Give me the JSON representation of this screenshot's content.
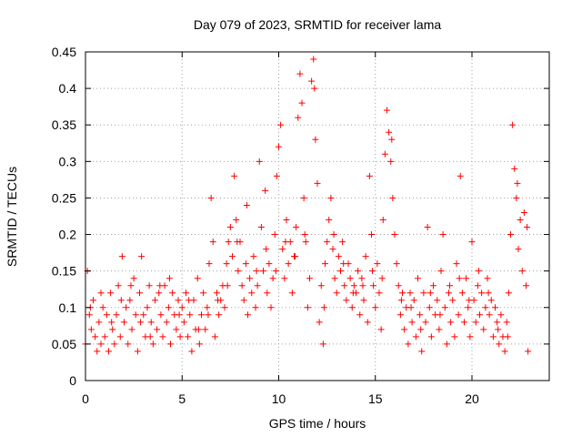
{
  "chart_data": {
    "type": "scatter",
    "title": "Day 079 of 2023, SRMTID for receiver lama",
    "xlabel": "GPS time / hours",
    "ylabel": "SRMTID / TECUs",
    "xlim": [
      0,
      24
    ],
    "ylim": [
      0,
      0.45
    ],
    "grid": true,
    "marker": "+",
    "marker_color": "#ff0000",
    "xticks": [
      0,
      5,
      10,
      15,
      20
    ],
    "xtick_labels": [
      "0",
      "5",
      "10",
      "15",
      "20"
    ],
    "yticks": [
      0,
      0.05,
      0.1,
      0.15,
      0.2,
      0.25,
      0.3,
      0.35,
      0.4,
      0.45
    ],
    "ytick_labels": [
      "0",
      "0.05",
      "0.1",
      "0.15",
      "0.2",
      "0.25",
      "0.3",
      "0.35",
      "0.4",
      "0.45"
    ],
    "series": [
      {
        "name": "SRMTID",
        "points": [
          [
            0.0,
            0.05
          ],
          [
            0.1,
            0.15
          ],
          [
            0.2,
            0.09
          ],
          [
            0.3,
            0.07
          ],
          [
            0.4,
            0.11
          ],
          [
            0.5,
            0.06
          ],
          [
            0.6,
            0.04
          ],
          [
            0.7,
            0.08
          ],
          [
            0.8,
            0.05
          ],
          [
            0.9,
            0.1
          ],
          [
            1.0,
            0.06
          ],
          [
            1.1,
            0.09
          ],
          [
            1.2,
            0.04
          ],
          [
            1.3,
            0.12
          ],
          [
            1.4,
            0.07
          ],
          [
            1.5,
            0.05
          ],
          [
            1.6,
            0.09
          ],
          [
            1.7,
            0.13
          ],
          [
            1.8,
            0.06
          ],
          [
            1.9,
            0.17
          ],
          [
            2.0,
            0.08
          ],
          [
            2.1,
            0.1
          ],
          [
            2.2,
            0.05
          ],
          [
            2.3,
            0.11
          ],
          [
            2.4,
            0.07
          ],
          [
            2.5,
            0.14
          ],
          [
            2.6,
            0.09
          ],
          [
            2.7,
            0.04
          ],
          [
            2.8,
            0.12
          ],
          [
            2.9,
            0.17
          ],
          [
            3.0,
            0.09
          ],
          [
            3.1,
            0.06
          ],
          [
            3.2,
            0.1
          ],
          [
            3.3,
            0.13
          ],
          [
            3.4,
            0.08
          ],
          [
            3.5,
            0.05
          ],
          [
            3.6,
            0.11
          ],
          [
            3.7,
            0.07
          ],
          [
            3.8,
            0.12
          ],
          [
            3.9,
            0.09
          ],
          [
            4.0,
            0.06
          ],
          [
            4.1,
            0.13
          ],
          [
            4.2,
            0.08
          ],
          [
            4.3,
            0.1
          ],
          [
            4.4,
            0.05
          ],
          [
            4.5,
            0.12
          ],
          [
            4.6,
            0.09
          ],
          [
            4.7,
            0.07
          ],
          [
            4.8,
            0.11
          ],
          [
            4.9,
            0.06
          ],
          [
            5.0,
            0.1
          ],
          [
            5.1,
            0.08
          ],
          [
            5.2,
            0.12
          ],
          [
            5.3,
            0.06
          ],
          [
            5.4,
            0.09
          ],
          [
            5.5,
            0.04
          ],
          [
            5.6,
            0.11
          ],
          [
            5.7,
            0.07
          ],
          [
            5.8,
            0.14
          ],
          [
            5.9,
            0.05
          ],
          [
            6.0,
            0.09
          ],
          [
            6.1,
            0.12
          ],
          [
            6.2,
            0.07
          ],
          [
            6.3,
            0.1
          ],
          [
            6.4,
            0.16
          ],
          [
            6.5,
            0.25
          ],
          [
            6.6,
            0.19
          ],
          [
            6.7,
            0.06
          ],
          [
            6.8,
            0.12
          ],
          [
            6.9,
            0.09
          ],
          [
            7.0,
            0.11
          ],
          [
            7.1,
            0.13
          ],
          [
            7.2,
            0.1
          ],
          [
            7.3,
            0.16
          ],
          [
            7.4,
            0.19
          ],
          [
            7.5,
            0.21
          ],
          [
            7.6,
            0.17
          ],
          [
            7.7,
            0.28
          ],
          [
            7.8,
            0.22
          ],
          [
            7.9,
            0.15
          ],
          [
            8.0,
            0.19
          ],
          [
            8.1,
            0.13
          ],
          [
            8.2,
            0.11
          ],
          [
            8.3,
            0.16
          ],
          [
            8.4,
            0.09
          ],
          [
            8.5,
            0.14
          ],
          [
            8.6,
            0.12
          ],
          [
            8.7,
            0.17
          ],
          [
            8.8,
            0.1
          ],
          [
            8.9,
            0.13
          ],
          [
            9.0,
            0.3
          ],
          [
            9.1,
            0.21
          ],
          [
            9.2,
            0.15
          ],
          [
            9.3,
            0.26
          ],
          [
            9.4,
            0.12
          ],
          [
            9.5,
            0.16
          ],
          [
            9.6,
            0.1
          ],
          [
            9.7,
            0.14
          ],
          [
            9.8,
            0.2
          ],
          [
            9.9,
            0.28
          ],
          [
            10.0,
            0.32
          ],
          [
            10.1,
            0.35
          ],
          [
            10.2,
            0.18
          ],
          [
            10.3,
            0.14
          ],
          [
            10.4,
            0.22
          ],
          [
            10.5,
            0.16
          ],
          [
            10.6,
            0.19
          ],
          [
            10.7,
            0.12
          ],
          [
            10.8,
            0.17
          ],
          [
            10.9,
            0.21
          ],
          [
            11.0,
            0.36
          ],
          [
            11.1,
            0.42
          ],
          [
            11.2,
            0.38
          ],
          [
            11.3,
            0.25
          ],
          [
            11.4,
            0.19
          ],
          [
            11.5,
            0.1
          ],
          [
            11.6,
            0.14
          ],
          [
            11.7,
            0.41
          ],
          [
            11.8,
            0.44
          ],
          [
            11.9,
            0.33
          ],
          [
            12.0,
            0.27
          ],
          [
            12.1,
            0.08
          ],
          [
            12.2,
            0.13
          ],
          [
            12.3,
            0.05
          ],
          [
            12.4,
            0.16
          ],
          [
            12.5,
            0.19
          ],
          [
            12.6,
            0.22
          ],
          [
            12.7,
            0.25
          ],
          [
            12.8,
            0.18
          ],
          [
            12.9,
            0.14
          ],
          [
            13.0,
            0.12
          ],
          [
            13.1,
            0.17
          ],
          [
            13.2,
            0.15
          ],
          [
            13.3,
            0.19
          ],
          [
            13.4,
            0.13
          ],
          [
            13.5,
            0.11
          ],
          [
            13.6,
            0.16
          ],
          [
            13.7,
            0.14
          ],
          [
            13.8,
            0.1
          ],
          [
            13.9,
            0.13
          ],
          [
            14.0,
            0.12
          ],
          [
            14.1,
            0.15
          ],
          [
            14.2,
            0.09
          ],
          [
            14.3,
            0.14
          ],
          [
            14.4,
            0.11
          ],
          [
            14.5,
            0.17
          ],
          [
            14.6,
            0.08
          ],
          [
            14.7,
            0.28
          ],
          [
            14.8,
            0.2
          ],
          [
            14.9,
            0.13
          ],
          [
            15.0,
            0.1
          ],
          [
            15.1,
            0.16
          ],
          [
            15.2,
            0.12
          ],
          [
            15.3,
            0.07
          ],
          [
            15.4,
            0.22
          ],
          [
            15.5,
            0.31
          ],
          [
            15.6,
            0.37
          ],
          [
            15.7,
            0.34
          ],
          [
            15.8,
            0.3
          ],
          [
            15.9,
            0.25
          ],
          [
            16.0,
            0.2
          ],
          [
            16.1,
            0.16
          ],
          [
            16.2,
            0.13
          ],
          [
            16.3,
            0.09
          ],
          [
            16.4,
            0.12
          ],
          [
            16.5,
            0.07
          ],
          [
            16.6,
            0.1
          ],
          [
            16.7,
            0.05
          ],
          [
            16.8,
            0.12
          ],
          [
            16.9,
            0.08
          ],
          [
            17.0,
            0.11
          ],
          [
            17.1,
            0.06
          ],
          [
            17.2,
            0.14
          ],
          [
            17.3,
            0.09
          ],
          [
            17.4,
            0.04
          ],
          [
            17.5,
            0.12
          ],
          [
            17.6,
            0.08
          ],
          [
            17.7,
            0.21
          ],
          [
            17.8,
            0.1
          ],
          [
            17.9,
            0.06
          ],
          [
            18.0,
            0.13
          ],
          [
            18.1,
            0.09
          ],
          [
            18.2,
            0.11
          ],
          [
            18.3,
            0.07
          ],
          [
            18.4,
            0.15
          ],
          [
            18.5,
            0.2
          ],
          [
            18.6,
            0.1
          ],
          [
            18.7,
            0.05
          ],
          [
            18.8,
            0.12
          ],
          [
            18.9,
            0.08
          ],
          [
            19.0,
            0.11
          ],
          [
            19.1,
            0.06
          ],
          [
            19.2,
            0.16
          ],
          [
            19.3,
            0.09
          ],
          [
            19.4,
            0.28
          ],
          [
            19.5,
            0.12
          ],
          [
            19.6,
            0.08
          ],
          [
            19.7,
            0.14
          ],
          [
            19.8,
            0.1
          ],
          [
            19.9,
            0.06
          ],
          [
            20.0,
            0.19
          ],
          [
            20.1,
            0.11
          ],
          [
            20.2,
            0.08
          ],
          [
            20.3,
            0.13
          ],
          [
            20.4,
            0.09
          ],
          [
            20.5,
            0.12
          ],
          [
            20.6,
            0.07
          ],
          [
            20.7,
            0.1
          ],
          [
            20.8,
            0.14
          ],
          [
            20.9,
            0.09
          ],
          [
            21.0,
            0.11
          ],
          [
            21.1,
            0.06
          ],
          [
            21.2,
            0.1
          ],
          [
            21.3,
            0.08
          ],
          [
            21.4,
            0.05
          ],
          [
            21.5,
            0.09
          ],
          [
            21.6,
            0.06
          ],
          [
            21.7,
            0.04
          ],
          [
            21.8,
            0.08
          ],
          [
            21.9,
            0.12
          ],
          [
            22.0,
            0.2
          ],
          [
            22.1,
            0.35
          ],
          [
            22.2,
            0.29
          ],
          [
            22.3,
            0.25
          ],
          [
            22.4,
            0.18
          ],
          [
            22.5,
            0.22
          ],
          [
            22.6,
            0.15
          ],
          [
            22.7,
            0.23
          ],
          [
            22.8,
            0.13
          ],
          [
            22.9,
            0.04
          ],
          [
            0.25,
            0.1
          ],
          [
            0.8,
            0.12
          ],
          [
            1.35,
            0.08
          ],
          [
            1.85,
            0.11
          ],
          [
            2.35,
            0.13
          ],
          [
            2.85,
            0.08
          ],
          [
            3.35,
            0.06
          ],
          [
            3.85,
            0.13
          ],
          [
            4.35,
            0.14
          ],
          [
            4.85,
            0.09
          ],
          [
            5.35,
            0.11
          ],
          [
            5.85,
            0.07
          ],
          [
            6.35,
            0.09
          ],
          [
            6.85,
            0.11
          ],
          [
            7.35,
            0.13
          ],
          [
            7.85,
            0.19
          ],
          [
            8.35,
            0.24
          ],
          [
            8.85,
            0.15
          ],
          [
            9.35,
            0.18
          ],
          [
            9.85,
            0.15
          ],
          [
            10.35,
            0.19
          ],
          [
            10.85,
            0.17
          ],
          [
            11.35,
            0.2
          ],
          [
            11.85,
            0.4
          ],
          [
            12.35,
            0.1
          ],
          [
            12.85,
            0.2
          ],
          [
            13.35,
            0.16
          ],
          [
            13.85,
            0.12
          ],
          [
            14.35,
            0.13
          ],
          [
            14.85,
            0.15
          ],
          [
            15.35,
            0.14
          ],
          [
            15.85,
            0.33
          ],
          [
            16.35,
            0.11
          ],
          [
            16.85,
            0.1
          ],
          [
            17.35,
            0.07
          ],
          [
            17.85,
            0.12
          ],
          [
            18.35,
            0.09
          ],
          [
            18.85,
            0.13
          ],
          [
            19.35,
            0.14
          ],
          [
            19.85,
            0.11
          ],
          [
            20.35,
            0.15
          ],
          [
            20.85,
            0.12
          ],
          [
            21.35,
            0.07
          ],
          [
            21.85,
            0.06
          ],
          [
            22.35,
            0.27
          ],
          [
            22.85,
            0.21
          ]
        ]
      }
    ]
  }
}
